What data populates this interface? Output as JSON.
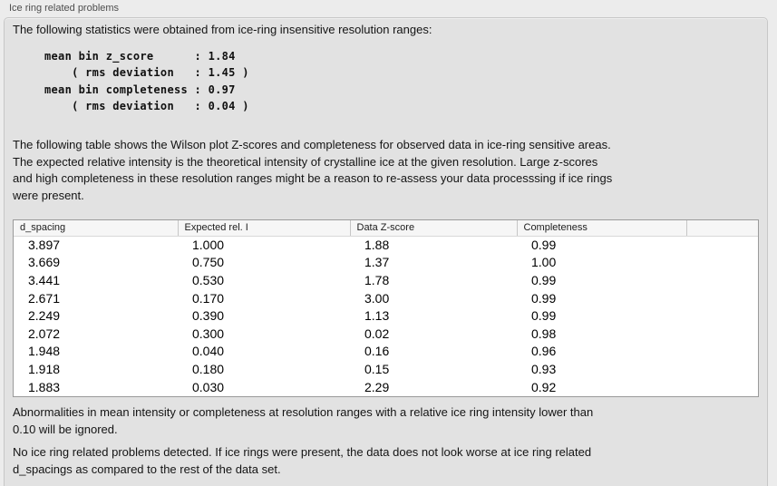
{
  "panel": {
    "title": "Ice ring related problems"
  },
  "intro": "The following statistics were obtained from ice-ring insensitive resolution ranges:",
  "stats_block": "mean bin z_score      : 1.84\n    ( rms deviation   : 1.45 )\nmean bin completeness : 0.97\n    ( rms deviation   : 0.04 )",
  "stats": {
    "mean_bin_z_score": "1.84",
    "z_score_rms_deviation": "1.45",
    "mean_bin_completeness": "0.97",
    "completeness_rms_deviation": "0.04"
  },
  "description": "The following table shows the Wilson plot Z-scores and completeness for observed data in ice-ring sensitive areas.\nThe expected relative intensity is the theoretical intensity of crystalline ice at the given resolution. Large z-scores\nand high completeness in these resolution ranges might be a reason to re-assess your data processsing if ice rings\nwere present.",
  "table": {
    "columns": [
      "d_spacing",
      "Expected rel. I",
      "Data Z-score",
      "Completeness",
      ""
    ],
    "rows": [
      [
        "3.897",
        "1.000",
        "1.88",
        "0.99"
      ],
      [
        "3.669",
        "0.750",
        "1.37",
        "1.00"
      ],
      [
        "3.441",
        "0.530",
        "1.78",
        "0.99"
      ],
      [
        "2.671",
        "0.170",
        "3.00",
        "0.99"
      ],
      [
        "2.249",
        "0.390",
        "1.13",
        "0.99"
      ],
      [
        "2.072",
        "0.300",
        "0.02",
        "0.98"
      ],
      [
        "1.948",
        "0.040",
        "0.16",
        "0.96"
      ],
      [
        "1.918",
        "0.180",
        "0.15",
        "0.93"
      ],
      [
        "1.883",
        "0.030",
        "2.29",
        "0.92"
      ]
    ]
  },
  "note": "Abnormalities in mean intensity or completeness at resolution ranges with a relative ice ring intensity lower than\n0.10 will be ignored.",
  "conclusion": "No ice ring related problems detected. If ice rings were present, the data does not look worse at ice ring related\nd_spacings as compared to the rest of the data set.",
  "colors": {
    "page_bg": "#ececec",
    "panel_bg": "#e2e2e2",
    "table_bg": "#ffffff",
    "table_border": "#9a9a9a"
  }
}
